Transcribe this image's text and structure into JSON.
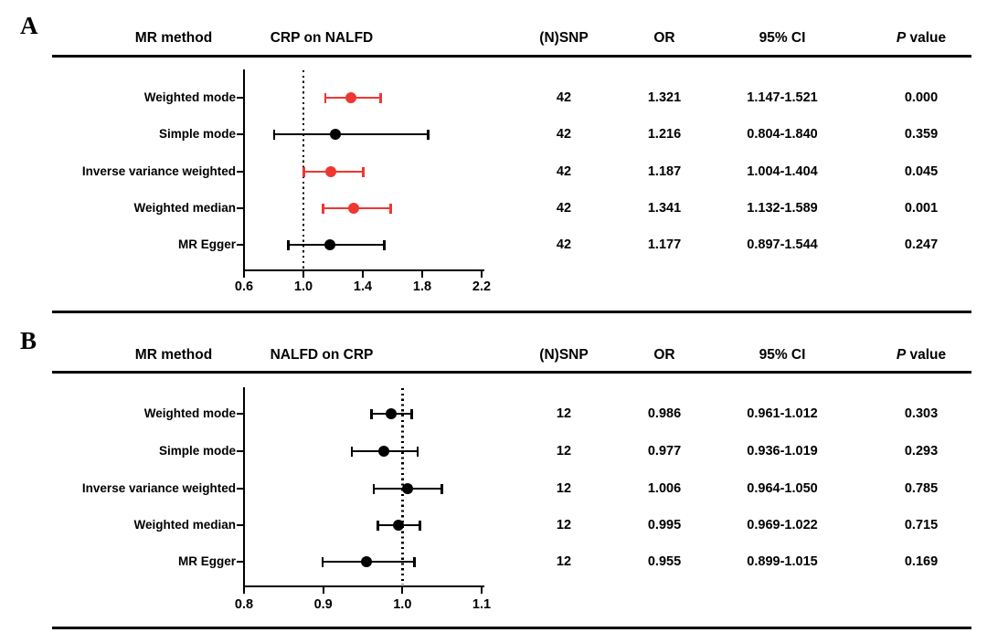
{
  "colors": {
    "accent_red": "#EE3732",
    "ink": "#000000",
    "background": "#FFFFFF"
  },
  "chart_data": [
    {
      "type": "scatter",
      "subtype": "forest-plot",
      "panel_label": "A",
      "title": "CRP on NALFD",
      "columns": [
        "MR method",
        "(N)SNP",
        "OR",
        "95% CI",
        "P value"
      ],
      "xlim": [
        0.6,
        2.2
      ],
      "xticks": [
        "0.6",
        "1.0",
        "1.4",
        "1.8",
        "2.2"
      ],
      "ref_line": 1.0,
      "legend": "none",
      "rows": [
        {
          "method": "Weighted mode",
          "nsnp": "42",
          "or": 1.321,
          "ci_low": 1.147,
          "ci_high": 1.521,
          "ci_label": "1.147-1.521",
          "p_value": "0.000",
          "color": "#EE3732"
        },
        {
          "method": "Simple mode",
          "nsnp": "42",
          "or": 1.216,
          "ci_low": 0.804,
          "ci_high": 1.84,
          "ci_label": "0.804-1.840",
          "p_value": "0.359",
          "color": "#000000"
        },
        {
          "method": "Inverse variance weighted",
          "nsnp": "42",
          "or": 1.187,
          "ci_low": 1.004,
          "ci_high": 1.404,
          "ci_label": "1.004-1.404",
          "p_value": "0.045",
          "color": "#EE3732"
        },
        {
          "method": "Weighted median",
          "nsnp": "42",
          "or": 1.341,
          "ci_low": 1.132,
          "ci_high": 1.589,
          "ci_label": "1.132-1.589",
          "p_value": "0.001",
          "color": "#EE3732"
        },
        {
          "method": "MR Egger",
          "nsnp": "42",
          "or": 1.177,
          "ci_low": 0.897,
          "ci_high": 1.544,
          "ci_label": "0.897-1.544",
          "p_value": "0.247",
          "color": "#000000"
        }
      ]
    },
    {
      "type": "scatter",
      "subtype": "forest-plot",
      "panel_label": "B",
      "title": "NALFD on CRP",
      "columns": [
        "MR method",
        "(N)SNP",
        "OR",
        "95% CI",
        "P value"
      ],
      "xlim": [
        0.8,
        1.1
      ],
      "xticks": [
        "0.8",
        "0.9",
        "1.0",
        "1.1"
      ],
      "ref_line": 1.0,
      "legend": "none",
      "rows": [
        {
          "method": "Weighted mode",
          "nsnp": "12",
          "or": 0.986,
          "ci_low": 0.961,
          "ci_high": 1.012,
          "ci_label": "0.961-1.012",
          "p_value": "0.303",
          "color": "#000000"
        },
        {
          "method": "Simple mode",
          "nsnp": "12",
          "or": 0.977,
          "ci_low": 0.936,
          "ci_high": 1.019,
          "ci_label": "0.936-1.019",
          "p_value": "0.293",
          "color": "#000000"
        },
        {
          "method": "Inverse variance weighted",
          "nsnp": "12",
          "or": 1.006,
          "ci_low": 0.964,
          "ci_high": 1.05,
          "ci_label": "0.964-1.050",
          "p_value": "0.785",
          "color": "#000000"
        },
        {
          "method": "Weighted median",
          "nsnp": "12",
          "or": 0.995,
          "ci_low": 0.969,
          "ci_high": 1.022,
          "ci_label": "0.969-1.022",
          "p_value": "0.715",
          "color": "#000000"
        },
        {
          "method": "MR Egger",
          "nsnp": "12",
          "or": 0.955,
          "ci_low": 0.899,
          "ci_high": 1.015,
          "ci_label": "0.899-1.015",
          "p_value": "0.169",
          "color": "#000000"
        }
      ]
    }
  ]
}
